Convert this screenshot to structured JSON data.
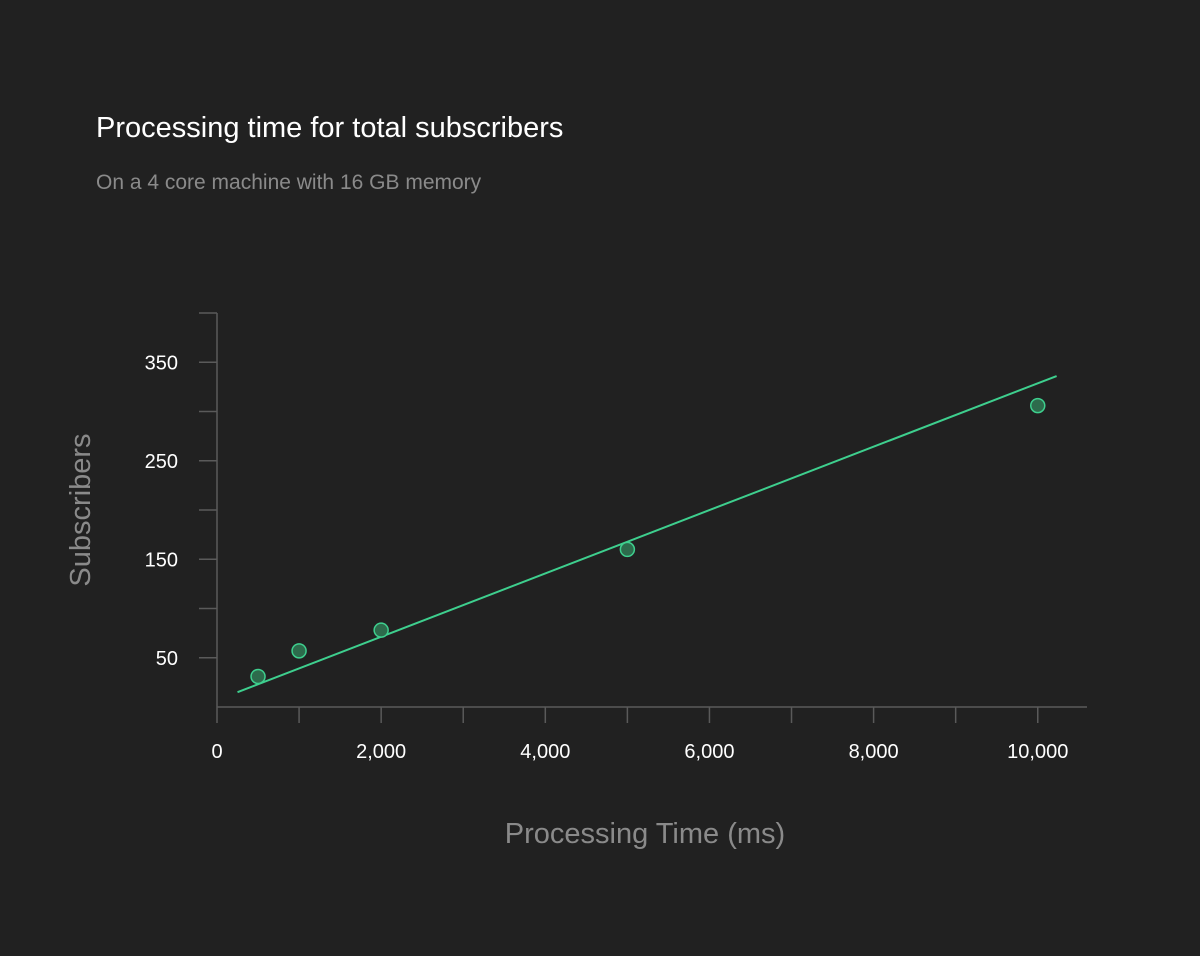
{
  "header": {
    "title": "Processing time for total subscribers",
    "subtitle": "On a 4 core machine with 16 GB memory"
  },
  "colors": {
    "background": "#212121",
    "axis": "#5a5a5a",
    "trend_line": "#3ecf8e",
    "point_fill": "#2d6b4c",
    "point_stroke": "#3ecf8e"
  },
  "chart_data": {
    "type": "scatter",
    "title": "Processing time for total subscribers",
    "subtitle": "On a 4 core machine with 16 GB memory",
    "xlabel": "Processing Time (ms)",
    "ylabel": "Subscribers",
    "xlim": [
      0,
      10600
    ],
    "ylim": [
      0,
      400
    ],
    "x_ticks": [
      0,
      2000,
      4000,
      6000,
      8000,
      10000
    ],
    "x_tick_labels": [
      "0",
      "2,000",
      "4,000",
      "6,000",
      "8,000",
      "10,000"
    ],
    "y_ticks": [
      50,
      150,
      250,
      350
    ],
    "y_tick_labels": [
      "50",
      "150",
      "250",
      "350"
    ],
    "grid": false,
    "series": [
      {
        "points": [
          {
            "x": 500,
            "y": 31
          },
          {
            "x": 1000,
            "y": 57
          },
          {
            "x": 2000,
            "y": 78
          },
          {
            "x": 5000,
            "y": 160
          },
          {
            "x": 10000,
            "y": 306
          }
        ]
      }
    ],
    "trend_line": {
      "from": {
        "x": 250,
        "y": 15
      },
      "to": {
        "x": 10230,
        "y": 336
      }
    }
  }
}
